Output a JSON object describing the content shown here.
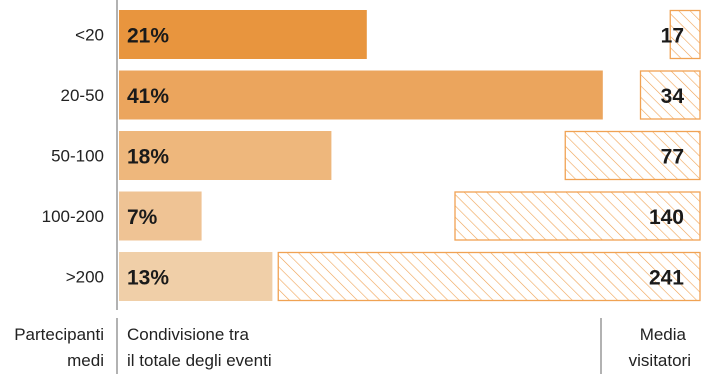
{
  "chart_data": {
    "type": "bar",
    "categories": [
      "<20",
      "20-50",
      "50-100",
      "100-200",
      ">200"
    ],
    "series": [
      {
        "name": "Condivisione tra il totale degli eventi",
        "values": [
          21,
          41,
          18,
          7,
          13
        ],
        "labels": [
          "21%",
          "41%",
          "18%",
          "7%",
          "13%"
        ]
      },
      {
        "name": "Media visitatori",
        "values": [
          17,
          34,
          77,
          140,
          241
        ],
        "labels": [
          "17",
          "34",
          "77",
          "140",
          "241"
        ]
      }
    ],
    "bar_colors": [
      "#E8953E",
      "#EBA55D",
      "#EEB77C",
      "#EFC394",
      "#F0CFA8"
    ],
    "hatch_color": "#F0A253",
    "footer": {
      "left_line1": "Partecipanti",
      "left_line2": "medi",
      "middle_line1": "Condivisione tra",
      "middle_line2": "il totale degli eventi",
      "right_line1": "Media",
      "right_line2": "visitatori"
    }
  }
}
